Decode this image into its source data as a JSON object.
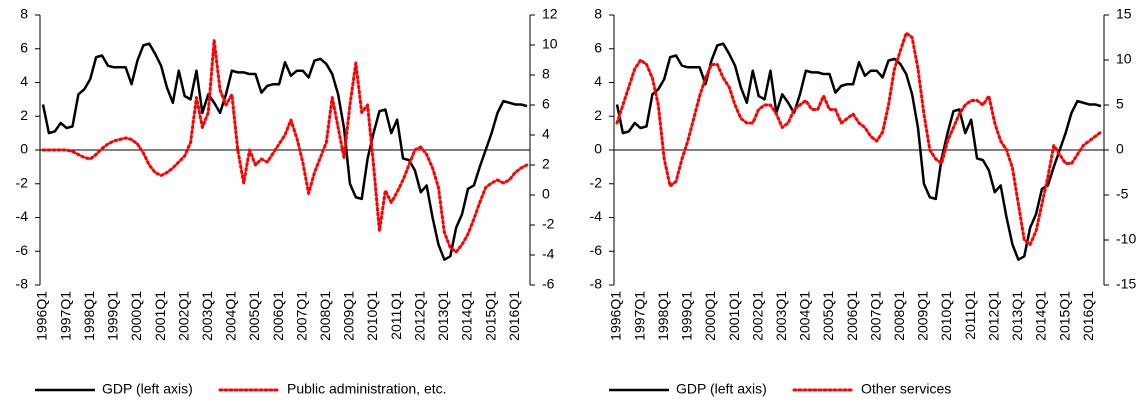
{
  "chart_data": [
    {
      "type": "line",
      "categories": [
        "1996Q1",
        null,
        null,
        null,
        "1997Q1",
        null,
        null,
        null,
        "1998Q1",
        null,
        null,
        null,
        "1999Q1",
        null,
        null,
        null,
        "2000Q1",
        null,
        null,
        null,
        "2001Q1",
        null,
        null,
        null,
        "2002Q1",
        null,
        null,
        null,
        "2003Q1",
        null,
        null,
        null,
        "2004Q1",
        null,
        null,
        null,
        "2005Q1",
        null,
        null,
        null,
        "2006Q1",
        null,
        null,
        null,
        "2007Q1",
        null,
        null,
        null,
        "2008Q1",
        null,
        null,
        null,
        "2009Q1",
        null,
        null,
        null,
        "2010Q1",
        null,
        null,
        null,
        "2011Q1",
        null,
        null,
        null,
        "2012Q1",
        null,
        null,
        null,
        "2013Q1",
        null,
        null,
        null,
        "2014Q1",
        null,
        null,
        null,
        "2015Q1",
        null,
        null,
        null,
        "2016Q1",
        null,
        null
      ],
      "ylim": [
        -8,
        8
      ],
      "yticks": [
        -8,
        -6,
        -4,
        -2,
        0,
        2,
        4,
        6,
        8
      ],
      "y2lim": [
        -6,
        12
      ],
      "y2ticks": [
        -6,
        -4,
        -2,
        0,
        2,
        4,
        6,
        8,
        10,
        12
      ],
      "series": [
        {
          "name": "GDP (left axis)",
          "color": "#000000",
          "style": "solid",
          "values": [
            2.7,
            1.0,
            1.1,
            1.6,
            1.3,
            1.4,
            3.3,
            3.6,
            4.2,
            5.5,
            5.6,
            5.0,
            4.9,
            4.9,
            4.9,
            3.9,
            5.3,
            6.2,
            6.3,
            5.7,
            5.0,
            3.7,
            2.8,
            4.7,
            3.2,
            3.0,
            4.7,
            2.2,
            3.3,
            2.8,
            2.2,
            3.3,
            4.7,
            4.6,
            4.6,
            4.5,
            4.5,
            3.4,
            3.8,
            3.9,
            3.9,
            5.2,
            4.4,
            4.7,
            4.7,
            4.3,
            5.3,
            5.4,
            5.1,
            4.5,
            3.3,
            1.3,
            -2.0,
            -2.8,
            -2.9,
            -0.5,
            1.0,
            2.3,
            2.4,
            1.0,
            1.8,
            -0.5,
            -0.6,
            -1.2,
            -2.5,
            -2.1,
            -4.0,
            -5.6,
            -6.5,
            -6.3,
            -4.6,
            -3.8,
            -2.3,
            -2.1,
            -1.0,
            0.0,
            1.0,
            2.2,
            2.9,
            2.8,
            2.7,
            2.7,
            2.6
          ]
        },
        {
          "name": "Public administration, etc.",
          "color": "#ff0000",
          "style": "dotted",
          "axis": "y2",
          "values": [
            3,
            3,
            3,
            3,
            3,
            2.9,
            2.7,
            2.5,
            2.4,
            2.7,
            3.1,
            3.4,
            3.6,
            3.7,
            3.8,
            3.7,
            3.4,
            2.8,
            2.0,
            1.5,
            1.3,
            1.5,
            1.8,
            2.2,
            2.6,
            3.5,
            6.5,
            4.5,
            5.5,
            10.3,
            7.0,
            6.0,
            6.7,
            3.0,
            0.8,
            3.0,
            2.0,
            2.4,
            2.2,
            2.8,
            3.4,
            4.0,
            5.0,
            3.8,
            2.2,
            0.1,
            1.5,
            2.5,
            3.5,
            6.5,
            4.5,
            2.5,
            6.0,
            8.8,
            5.5,
            6.0,
            2.0,
            -2.4,
            0.3,
            -0.5,
            0.2,
            1.0,
            2.0,
            3.0,
            3.2,
            2.7,
            1.8,
            0.5,
            -2.5,
            -3.5,
            -3.8,
            -3.3,
            -2.6,
            -1.6,
            -0.5,
            0.5,
            0.8,
            1.0,
            0.8,
            1.0,
            1.5,
            1.8,
            2.0
          ]
        }
      ]
    },
    {
      "type": "line",
      "categories": [
        "1996Q1",
        null,
        null,
        null,
        "1997Q1",
        null,
        null,
        null,
        "1998Q1",
        null,
        null,
        null,
        "1999Q1",
        null,
        null,
        null,
        "2000Q1",
        null,
        null,
        null,
        "2001Q1",
        null,
        null,
        null,
        "2002Q1",
        null,
        null,
        null,
        "2003Q1",
        null,
        null,
        null,
        "2004Q1",
        null,
        null,
        null,
        "2005Q1",
        null,
        null,
        null,
        "2006Q1",
        null,
        null,
        null,
        "2007Q1",
        null,
        null,
        null,
        "2008Q1",
        null,
        null,
        null,
        "2009Q1",
        null,
        null,
        null,
        "2010Q1",
        null,
        null,
        null,
        "2011Q1",
        null,
        null,
        null,
        "2012Q1",
        null,
        null,
        null,
        "2013Q1",
        null,
        null,
        null,
        "2014Q1",
        null,
        null,
        null,
        "2015Q1",
        null,
        null,
        null,
        "2016Q1",
        null,
        null
      ],
      "ylim": [
        -8,
        8
      ],
      "yticks": [
        -8,
        -6,
        -4,
        -2,
        0,
        2,
        4,
        6,
        8
      ],
      "y2lim": [
        -15,
        15
      ],
      "y2ticks": [
        -15,
        -10,
        -5,
        0,
        5,
        10,
        15
      ],
      "series": [
        {
          "name": "GDP (left axis)",
          "color": "#000000",
          "style": "solid",
          "values": [
            2.7,
            1.0,
            1.1,
            1.6,
            1.3,
            1.4,
            3.3,
            3.6,
            4.2,
            5.5,
            5.6,
            5.0,
            4.9,
            4.9,
            4.9,
            3.9,
            5.3,
            6.2,
            6.3,
            5.7,
            5.0,
            3.7,
            2.8,
            4.7,
            3.2,
            3.0,
            4.7,
            2.2,
            3.3,
            2.8,
            2.2,
            3.3,
            4.7,
            4.6,
            4.6,
            4.5,
            4.5,
            3.4,
            3.8,
            3.9,
            3.9,
            5.2,
            4.4,
            4.7,
            4.7,
            4.3,
            5.3,
            5.4,
            5.1,
            4.5,
            3.3,
            1.3,
            -2.0,
            -2.8,
            -2.9,
            -0.5,
            1.0,
            2.3,
            2.4,
            1.0,
            1.8,
            -0.5,
            -0.6,
            -1.2,
            -2.5,
            -2.1,
            -4.0,
            -5.6,
            -6.5,
            -6.3,
            -4.6,
            -3.8,
            -2.3,
            -2.1,
            -1.0,
            0.0,
            1.0,
            2.2,
            2.9,
            2.8,
            2.7,
            2.7,
            2.6
          ]
        },
        {
          "name": "Other services",
          "color": "#ff0000",
          "style": "dotted",
          "axis": "y2",
          "values": [
            3,
            5,
            7,
            9,
            10,
            9.5,
            8,
            5,
            -1,
            -4,
            -3.5,
            -1,
            1,
            3.5,
            6,
            8,
            9.5,
            9.5,
            8,
            7,
            5,
            3.5,
            3,
            3,
            4.5,
            5,
            5,
            4,
            2.5,
            3,
            4.5,
            5,
            5.5,
            4.5,
            4.5,
            6,
            4.5,
            4.5,
            3,
            3.5,
            4,
            3,
            2.5,
            1.5,
            1,
            2,
            5,
            9,
            11,
            13,
            12.5,
            9,
            4,
            0,
            -1,
            -1.5,
            1,
            2.5,
            4,
            5,
            5.5,
            5.5,
            5,
            6,
            3,
            1,
            0,
            -2,
            -6,
            -10,
            -10.5,
            -9,
            -6,
            -3,
            0.5,
            -0.5,
            -1.5,
            -1.5,
            -0.5,
            0.5,
            1,
            1.5,
            2
          ]
        }
      ]
    }
  ]
}
